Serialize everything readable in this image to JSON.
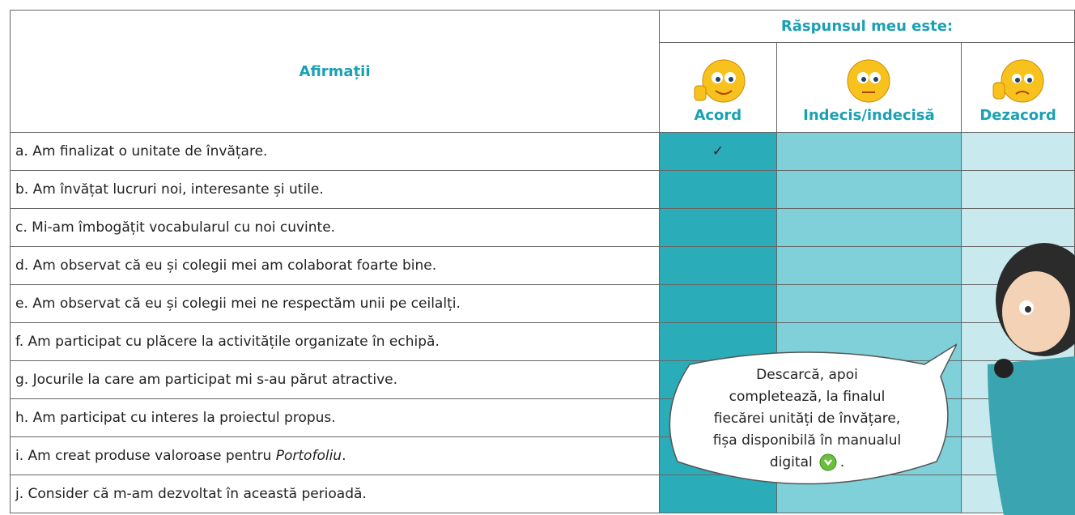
{
  "header": {
    "title": "Afirmații",
    "response_title": "Răspunsul meu este:",
    "columns": [
      "Acord",
      "Indecis/indecisă",
      "Dezacord"
    ]
  },
  "rows": [
    {
      "parts": [
        "a. Am finalizat o unitate de învățare."
      ],
      "acord": "✓"
    },
    {
      "parts": [
        "b. Am învățat lucruri noi, interesante și utile."
      ]
    },
    {
      "parts": [
        "c. Mi-am îmbogățit vocabularul cu noi cuvinte."
      ]
    },
    {
      "parts": [
        "d. Am observat că eu și colegii mei am colaborat foarte bine."
      ]
    },
    {
      "parts": [
        "e. Am observat că eu și colegii mei ne respectăm unii pe ceilalți."
      ]
    },
    {
      "parts": [
        "f. Am participat cu plăcere la activitățile organizate în echipă."
      ]
    },
    {
      "parts": [
        "g. Jocurile la care am participat mi s-au părut atractive."
      ]
    },
    {
      "parts": [
        "h. Am participat cu interes la proiectul propus."
      ]
    },
    {
      "parts": [
        "i. Am creat produse valoroase pentru ",
        "Portofoliu",
        "."
      ]
    },
    {
      "parts": [
        "j. Consider că m-am dezvoltat în această perioadă."
      ]
    }
  ],
  "bubble": {
    "lines": [
      "Descarcă, apoi",
      "completează, la finalul",
      "fiecărei unități de învățare,",
      "fișa disponibilă în manualul",
      "digital"
    ],
    "end": "."
  }
}
